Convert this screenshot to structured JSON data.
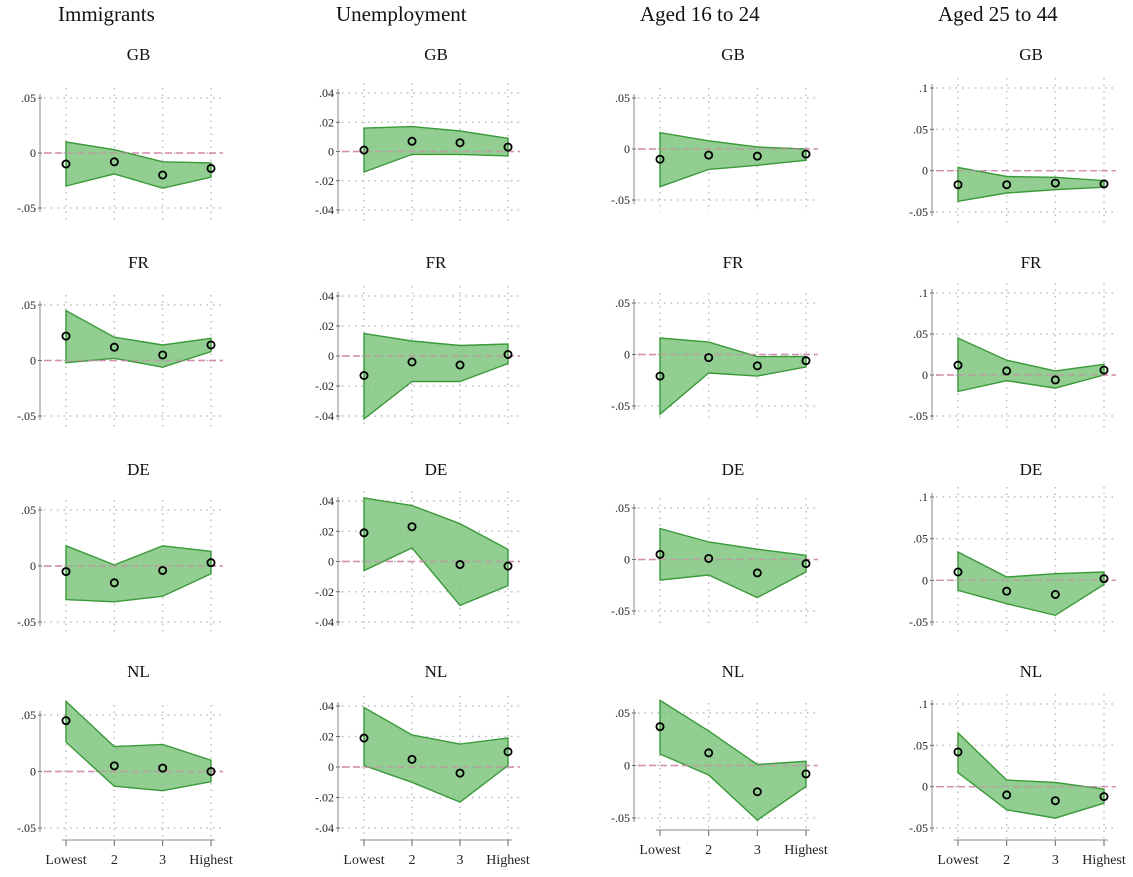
{
  "colors": {
    "band_fill": "#7fc47f",
    "band_stroke": "#3a9a3a",
    "ref_line": "#d58fb0",
    "grid": "#bbbbbb",
    "marker": "#000000"
  },
  "columns": [
    {
      "title": "Immigrants"
    },
    {
      "title": "Unemployment"
    },
    {
      "title": "Aged 16 to 24"
    },
    {
      "title": "Aged 25 to 44"
    }
  ],
  "chart_data": [
    {
      "type": "area",
      "column": 0,
      "title": "GB",
      "categories": [
        "Lowest",
        "2",
        "3",
        "Highest"
      ],
      "ylim": [
        -0.05,
        0.05
      ],
      "yticks": [
        -0.05,
        0,
        0.05
      ],
      "ytick_labels": [
        "-.05",
        "0",
        ".05"
      ],
      "series": [
        {
          "role": "point",
          "values": [
            -0.01,
            -0.008,
            -0.02,
            -0.014
          ]
        },
        {
          "role": "upper",
          "values": [
            0.01,
            0.003,
            -0.008,
            -0.009
          ]
        },
        {
          "role": "lower",
          "values": [
            -0.03,
            -0.019,
            -0.032,
            -0.022
          ]
        }
      ]
    },
    {
      "type": "area",
      "column": 0,
      "title": "FR",
      "categories": [
        "Lowest",
        "2",
        "3",
        "Highest"
      ],
      "ylim": [
        -0.05,
        0.05
      ],
      "yticks": [
        -0.05,
        0,
        0.05
      ],
      "ytick_labels": [
        "-.05",
        "0",
        ".05"
      ],
      "series": [
        {
          "role": "point",
          "values": [
            0.022,
            0.012,
            0.005,
            0.014
          ]
        },
        {
          "role": "upper",
          "values": [
            0.045,
            0.021,
            0.014,
            0.02
          ]
        },
        {
          "role": "lower",
          "values": [
            -0.002,
            0.002,
            -0.006,
            0.008
          ]
        }
      ]
    },
    {
      "type": "area",
      "column": 0,
      "title": "DE",
      "categories": [
        "Lowest",
        "2",
        "3",
        "Highest"
      ],
      "ylim": [
        -0.05,
        0.05
      ],
      "yticks": [
        -0.05,
        0,
        0.05
      ],
      "ytick_labels": [
        "-.05",
        "0",
        ".05"
      ],
      "series": [
        {
          "role": "point",
          "values": [
            -0.005,
            -0.015,
            -0.004,
            0.003
          ]
        },
        {
          "role": "upper",
          "values": [
            0.018,
            0.001,
            0.018,
            0.013
          ]
        },
        {
          "role": "lower",
          "values": [
            -0.03,
            -0.032,
            -0.027,
            -0.007
          ]
        }
      ]
    },
    {
      "type": "area",
      "column": 0,
      "title": "NL",
      "categories": [
        "Lowest",
        "2",
        "3",
        "Highest"
      ],
      "ylim": [
        -0.05,
        0.05
      ],
      "yticks": [
        -0.05,
        0,
        0.05
      ],
      "ytick_labels": [
        "-.05",
        "0",
        ".05"
      ],
      "series": [
        {
          "role": "point",
          "values": [
            0.045,
            0.005,
            0.003,
            0.0
          ]
        },
        {
          "role": "upper",
          "values": [
            0.062,
            0.022,
            0.024,
            0.01
          ]
        },
        {
          "role": "lower",
          "values": [
            0.026,
            -0.013,
            -0.017,
            -0.009
          ]
        }
      ]
    },
    {
      "type": "area",
      "column": 1,
      "title": "GB",
      "categories": [
        "Lowest",
        "2",
        "3",
        "Highest"
      ],
      "ylim": [
        -0.04,
        0.04
      ],
      "yticks": [
        -0.04,
        -0.02,
        0,
        0.02,
        0.04
      ],
      "ytick_labels": [
        "-.04",
        "-.02",
        "0",
        ".02",
        ".04"
      ],
      "series": [
        {
          "role": "point",
          "values": [
            0.001,
            0.007,
            0.006,
            0.003
          ]
        },
        {
          "role": "upper",
          "values": [
            0.016,
            0.017,
            0.014,
            0.009
          ]
        },
        {
          "role": "lower",
          "values": [
            -0.014,
            -0.002,
            -0.002,
            -0.003
          ]
        }
      ]
    },
    {
      "type": "area",
      "column": 1,
      "title": "FR",
      "categories": [
        "Lowest",
        "2",
        "3",
        "Highest"
      ],
      "ylim": [
        -0.04,
        0.04
      ],
      "yticks": [
        -0.04,
        -0.02,
        0,
        0.02,
        0.04
      ],
      "ytick_labels": [
        "-.04",
        "-.02",
        "0",
        ".02",
        ".04"
      ],
      "series": [
        {
          "role": "point",
          "values": [
            -0.013,
            -0.004,
            -0.006,
            0.001
          ]
        },
        {
          "role": "upper",
          "values": [
            0.015,
            0.01,
            0.007,
            0.008
          ]
        },
        {
          "role": "lower",
          "values": [
            -0.042,
            -0.017,
            -0.017,
            -0.005
          ]
        }
      ]
    },
    {
      "type": "area",
      "column": 1,
      "title": "DE",
      "categories": [
        "Lowest",
        "2",
        "3",
        "Highest"
      ],
      "ylim": [
        -0.04,
        0.04
      ],
      "yticks": [
        -0.04,
        -0.02,
        0,
        0.02,
        0.04
      ],
      "ytick_labels": [
        "-.04",
        "-.02",
        "0",
        ".02",
        ".04"
      ],
      "series": [
        {
          "role": "point",
          "values": [
            0.019,
            0.023,
            -0.002,
            -0.003
          ]
        },
        {
          "role": "upper",
          "values": [
            0.042,
            0.037,
            0.025,
            0.008
          ]
        },
        {
          "role": "lower",
          "values": [
            -0.006,
            0.009,
            -0.029,
            -0.016
          ]
        }
      ]
    },
    {
      "type": "area",
      "column": 1,
      "title": "NL",
      "categories": [
        "Lowest",
        "2",
        "3",
        "Highest"
      ],
      "ylim": [
        -0.04,
        0.04
      ],
      "yticks": [
        -0.04,
        -0.02,
        0,
        0.02,
        0.04
      ],
      "ytick_labels": [
        "-.04",
        "-.02",
        "0",
        ".02",
        ".04"
      ],
      "series": [
        {
          "role": "point",
          "values": [
            0.019,
            0.005,
            -0.004,
            0.01
          ]
        },
        {
          "role": "upper",
          "values": [
            0.039,
            0.021,
            0.015,
            0.019
          ]
        },
        {
          "role": "lower",
          "values": [
            0.001,
            -0.01,
            -0.023,
            0.001
          ]
        }
      ]
    },
    {
      "type": "area",
      "column": 2,
      "title": "GB",
      "categories": [
        "Lowest",
        "2",
        "3",
        "Highest"
      ],
      "ylim": [
        -0.05,
        0.05
      ],
      "yticks": [
        -0.05,
        0,
        0.05
      ],
      "ytick_labels": [
        "-.05",
        "0",
        ".05"
      ],
      "series": [
        {
          "role": "point",
          "values": [
            -0.01,
            -0.006,
            -0.007,
            -0.005
          ]
        },
        {
          "role": "upper",
          "values": [
            0.016,
            0.008,
            0.002,
            0.0
          ]
        },
        {
          "role": "lower",
          "values": [
            -0.037,
            -0.02,
            -0.016,
            -0.011
          ]
        }
      ]
    },
    {
      "type": "area",
      "column": 2,
      "title": "FR",
      "categories": [
        "Lowest",
        "2",
        "3",
        "Highest"
      ],
      "ylim": [
        -0.05,
        0.05
      ],
      "yticks": [
        -0.05,
        0,
        0.05
      ],
      "ytick_labels": [
        "-.05",
        "0",
        ".05"
      ],
      "series": [
        {
          "role": "point",
          "values": [
            -0.021,
            -0.003,
            -0.011,
            -0.006
          ]
        },
        {
          "role": "upper",
          "values": [
            0.016,
            0.012,
            -0.002,
            -0.002
          ]
        },
        {
          "role": "lower",
          "values": [
            -0.058,
            -0.018,
            -0.021,
            -0.012
          ]
        }
      ]
    },
    {
      "type": "area",
      "column": 2,
      "title": "DE",
      "categories": [
        "Lowest",
        "2",
        "3",
        "Highest"
      ],
      "ylim": [
        -0.05,
        0.05
      ],
      "yticks": [
        -0.05,
        0,
        0.05
      ],
      "ytick_labels": [
        "-.05",
        "0",
        ".05"
      ],
      "series": [
        {
          "role": "point",
          "values": [
            0.005,
            0.001,
            -0.013,
            -0.004
          ]
        },
        {
          "role": "upper",
          "values": [
            0.03,
            0.017,
            0.01,
            0.004
          ]
        },
        {
          "role": "lower",
          "values": [
            -0.02,
            -0.015,
            -0.037,
            -0.012
          ]
        }
      ]
    },
    {
      "type": "area",
      "column": 2,
      "title": "NL",
      "categories": [
        "Lowest",
        "2",
        "3",
        "Highest"
      ],
      "ylim": [
        -0.05,
        0.05
      ],
      "yticks": [
        -0.05,
        0,
        0.05
      ],
      "ytick_labels": [
        "-.05",
        "0",
        ".05"
      ],
      "series": [
        {
          "role": "point",
          "values": [
            0.037,
            0.012,
            -0.025,
            -0.008
          ]
        },
        {
          "role": "upper",
          "values": [
            0.062,
            0.033,
            0.001,
            0.004
          ]
        },
        {
          "role": "lower",
          "values": [
            0.011,
            -0.009,
            -0.052,
            -0.02
          ]
        }
      ]
    },
    {
      "type": "area",
      "column": 3,
      "title": "GB",
      "categories": [
        "Lowest",
        "2",
        "3",
        "Highest"
      ],
      "ylim": [
        -0.05,
        0.1
      ],
      "yticks": [
        -0.05,
        0,
        0.05,
        0.1
      ],
      "ytick_labels": [
        "-.05",
        "0",
        ".05",
        ".1"
      ],
      "series": [
        {
          "role": "point",
          "values": [
            -0.017,
            -0.017,
            -0.015,
            -0.016
          ]
        },
        {
          "role": "upper",
          "values": [
            0.004,
            -0.007,
            -0.008,
            -0.012
          ]
        },
        {
          "role": "lower",
          "values": [
            -0.037,
            -0.027,
            -0.023,
            -0.02
          ]
        }
      ]
    },
    {
      "type": "area",
      "column": 3,
      "title": "FR",
      "categories": [
        "Lowest",
        "2",
        "3",
        "Highest"
      ],
      "ylim": [
        -0.05,
        0.1
      ],
      "yticks": [
        -0.05,
        0,
        0.05,
        0.1
      ],
      "ytick_labels": [
        "-.05",
        "0",
        ".05",
        ".1"
      ],
      "series": [
        {
          "role": "point",
          "values": [
            0.012,
            0.005,
            -0.006,
            0.006
          ]
        },
        {
          "role": "upper",
          "values": [
            0.045,
            0.018,
            0.005,
            0.013
          ]
        },
        {
          "role": "lower",
          "values": [
            -0.02,
            -0.007,
            -0.016,
            0.0
          ]
        }
      ]
    },
    {
      "type": "area",
      "column": 3,
      "title": "DE",
      "categories": [
        "Lowest",
        "2",
        "3",
        "Highest"
      ],
      "ylim": [
        -0.05,
        0.1
      ],
      "yticks": [
        -0.05,
        0,
        0.05,
        0.1
      ],
      "ytick_labels": [
        "-.05",
        "0",
        ".05",
        ".1"
      ],
      "series": [
        {
          "role": "point",
          "values": [
            0.01,
            -0.013,
            -0.017,
            0.002
          ]
        },
        {
          "role": "upper",
          "values": [
            0.034,
            0.004,
            0.008,
            0.01
          ]
        },
        {
          "role": "lower",
          "values": [
            -0.012,
            -0.028,
            -0.042,
            -0.005
          ]
        }
      ]
    },
    {
      "type": "area",
      "column": 3,
      "title": "NL",
      "categories": [
        "Lowest",
        "2",
        "3",
        "Highest"
      ],
      "ylim": [
        -0.05,
        0.1
      ],
      "yticks": [
        -0.05,
        0,
        0.05,
        0.1
      ],
      "ytick_labels": [
        "-.05",
        "0",
        ".05",
        ".1"
      ],
      "series": [
        {
          "role": "point",
          "values": [
            0.042,
            -0.01,
            -0.017,
            -0.012
          ]
        },
        {
          "role": "upper",
          "values": [
            0.065,
            0.008,
            0.005,
            -0.003
          ]
        },
        {
          "role": "lower",
          "values": [
            0.017,
            -0.028,
            -0.038,
            -0.02
          ]
        }
      ]
    }
  ]
}
